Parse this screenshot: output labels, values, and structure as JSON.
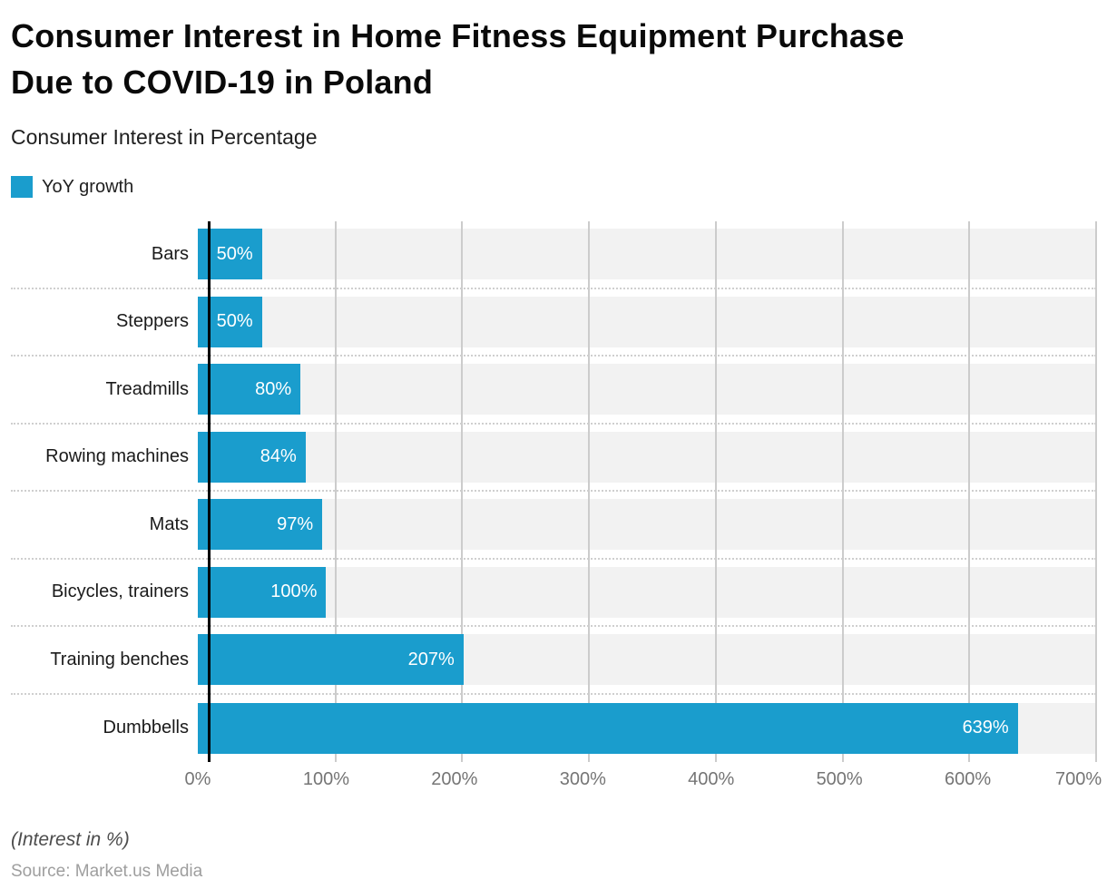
{
  "header": {
    "title_line1": "Consumer Interest in Home Fitness Equipment Purchase",
    "title_line2": "Due to COVID-19 in Poland",
    "subtitle": "Consumer Interest in Percentage"
  },
  "legend": {
    "label": "YoY growth",
    "swatch_color": "#1A9DCD"
  },
  "chart_data": {
    "type": "bar",
    "orientation": "horizontal",
    "title": "Consumer Interest in Home Fitness Equipment Purchase Due to COVID-19 in Poland",
    "xlabel": "Consumer Interest in Percentage",
    "categories": [
      "Bars",
      "Steppers",
      "Treadmills",
      "Rowing machines",
      "Mats",
      "Bicycles, trainers",
      "Training benches",
      "Dumbbells"
    ],
    "series": [
      {
        "name": "YoY growth",
        "values": [
          50,
          50,
          80,
          84,
          97,
          100,
          207,
          639
        ]
      }
    ],
    "value_labels": [
      "50%",
      "50%",
      "80%",
      "84%",
      "97%",
      "100%",
      "207%",
      "639%"
    ],
    "xlim": [
      0,
      700
    ],
    "x_ticks": [
      "0%",
      "100%",
      "200%",
      "300%",
      "400%",
      "500%",
      "600%",
      "700%"
    ],
    "grid": true,
    "legend_position": "top-left",
    "colors": {
      "bar": "#1A9DCD",
      "track": "#F2F2F2",
      "gridline": "#CCCCCC",
      "axis": "#000000",
      "tick_text": "#757575"
    }
  },
  "footer": {
    "note": "(Interest in %)",
    "source": "Source: Market.us Media"
  }
}
